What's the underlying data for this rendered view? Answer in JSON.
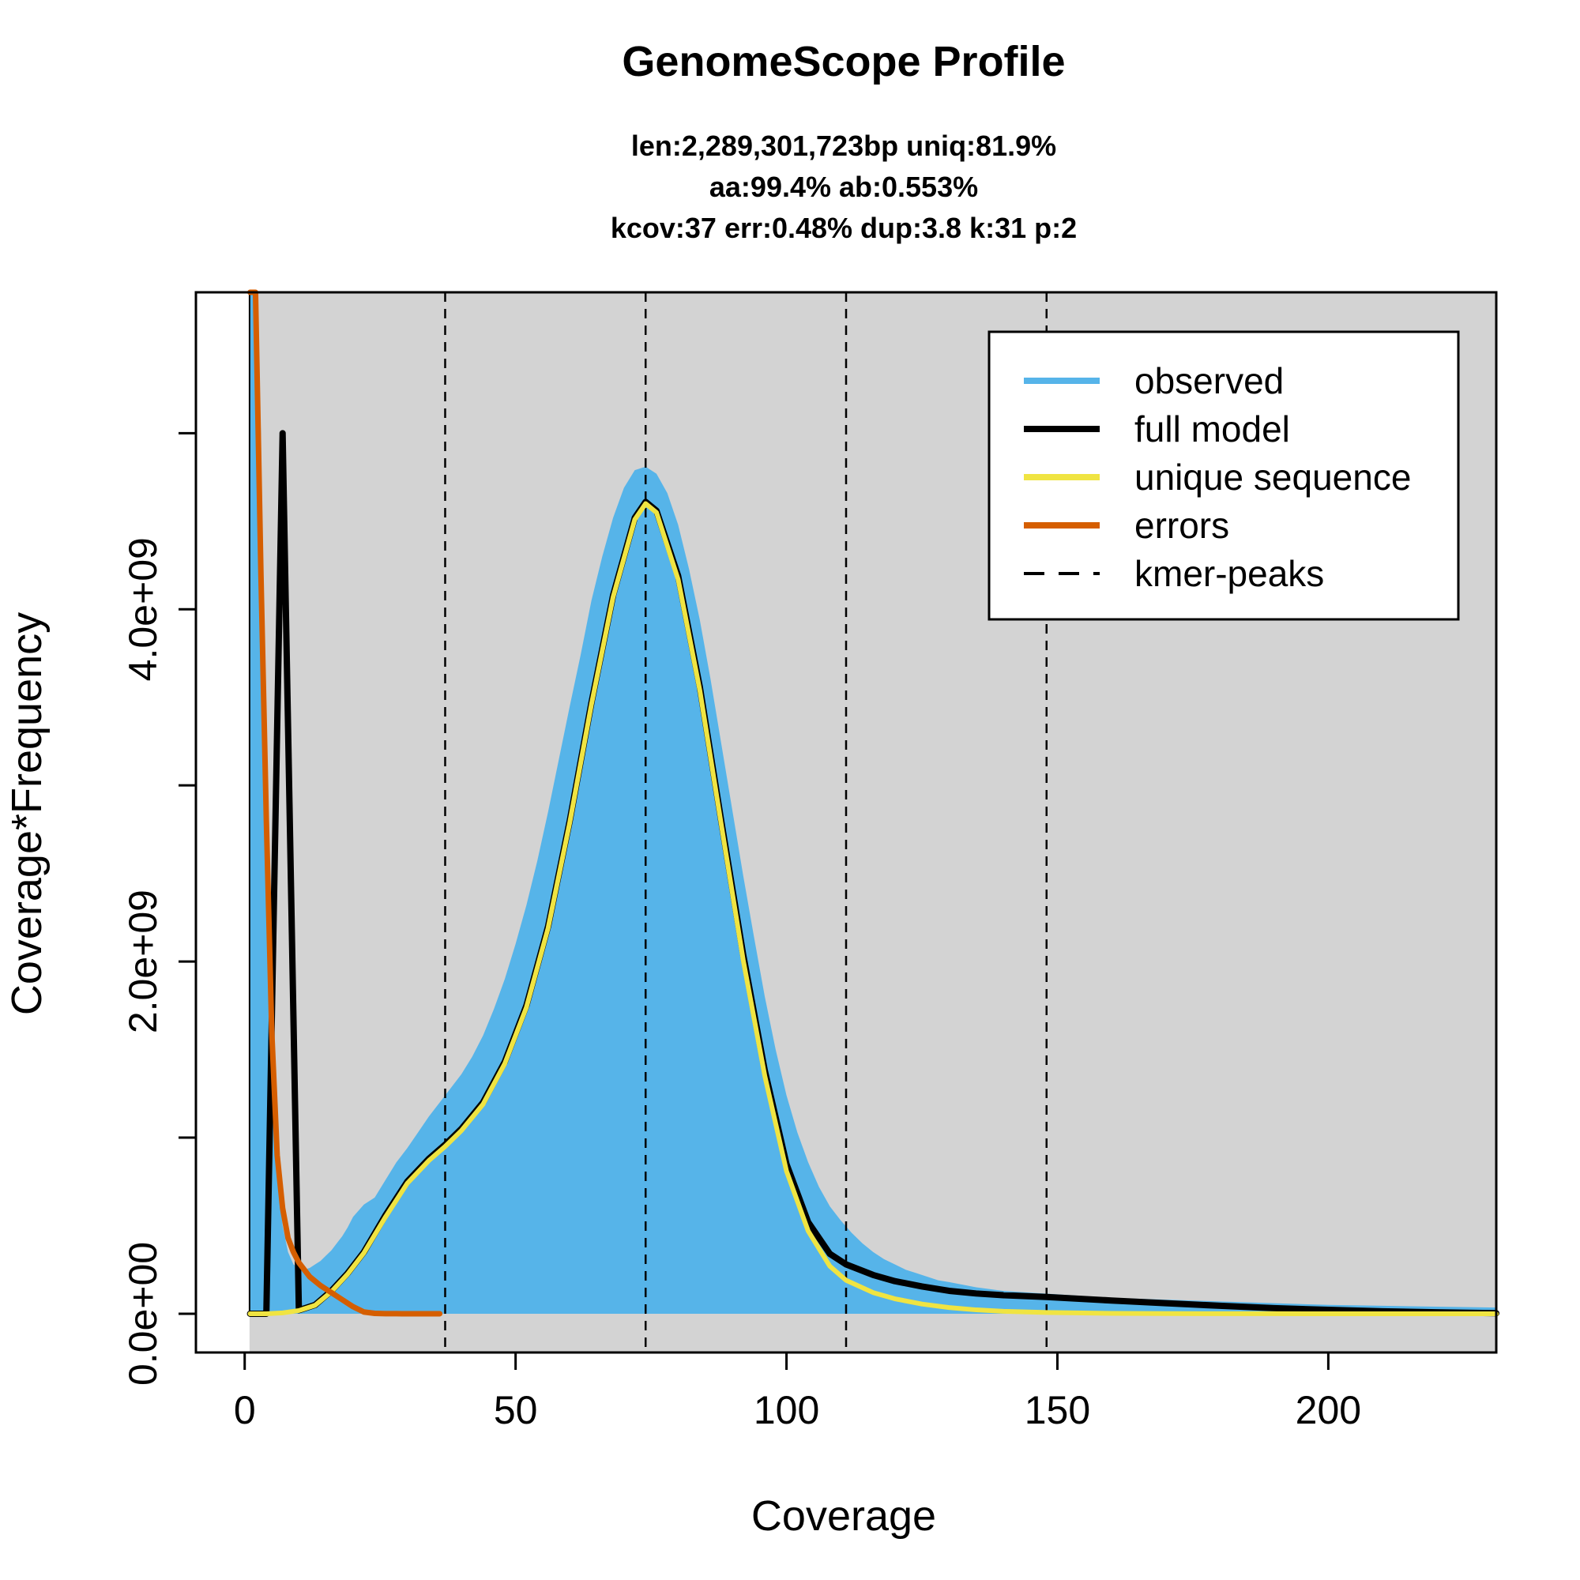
{
  "chart_data": {
    "type": "area",
    "title": "GenomeScope Profile",
    "subtitle_lines": [
      "len:2,289,301,723bp uniq:81.9%",
      "aa:99.4% ab:0.553%",
      "kcov:37 err:0.48%  dup:3.8  k:31 p:2"
    ],
    "xlabel": "Coverage",
    "ylabel": "Coverage*Frequency",
    "xlim": [
      -9,
      231
    ],
    "ylim": [
      -220000000,
      5800000000
    ],
    "x_ticks": [
      {
        "value": 0,
        "label": "0"
      },
      {
        "value": 50,
        "label": "50"
      },
      {
        "value": 100,
        "label": "100"
      },
      {
        "value": 150,
        "label": "150"
      },
      {
        "value": 200,
        "label": "200"
      }
    ],
    "y_ticks": [
      {
        "value": 0,
        "label": "0.0e+00"
      },
      {
        "value": 1000000000,
        "label": "1.0e+09"
      },
      {
        "value": 2000000000,
        "label": "2.0e+09"
      },
      {
        "value": 3000000000,
        "label": "3.0e+09"
      },
      {
        "value": 4000000000,
        "label": "4.0e+09"
      },
      {
        "value": 5000000000,
        "label": "5.0e+09"
      }
    ],
    "kmer_peaks": [
      37,
      74,
      111,
      148
    ],
    "colors": {
      "background": "#d3d3d3",
      "observed": "#56b4e9",
      "full_model": "#000000",
      "unique_sequence": "#f0e442",
      "errors": "#d55e00"
    },
    "legend": {
      "position": "top-right",
      "entries": [
        {
          "label": "observed",
          "color": "#56b4e9",
          "style": "solid"
        },
        {
          "label": "full model",
          "color": "#000000",
          "style": "solid"
        },
        {
          "label": "unique sequence",
          "color": "#f0e442",
          "style": "solid"
        },
        {
          "label": "errors",
          "color": "#d55e00",
          "style": "solid"
        },
        {
          "label": "kmer-peaks",
          "color": "#000000",
          "style": "dashed"
        }
      ]
    },
    "observed": {
      "x": [
        1,
        2,
        3,
        4,
        5,
        6,
        7,
        8,
        9,
        10,
        11,
        12,
        13,
        14,
        15,
        16,
        17,
        18,
        19,
        20,
        22,
        24,
        26,
        28,
        30,
        32,
        34,
        36,
        38,
        40,
        42,
        44,
        46,
        48,
        50,
        52,
        54,
        56,
        58,
        60,
        62,
        64,
        66,
        68,
        70,
        72,
        74,
        76,
        78,
        80,
        82,
        84,
        86,
        88,
        90,
        92,
        94,
        96,
        98,
        100,
        102,
        104,
        106,
        108,
        110,
        112,
        114,
        116,
        118,
        120,
        122,
        124,
        126,
        128,
        130,
        135,
        140,
        145,
        150,
        155,
        160,
        170,
        180,
        190,
        200,
        210,
        220,
        231
      ],
      "y": [
        5800000000,
        5800000000,
        5000000000,
        2400000000,
        1400000000,
        800000000,
        500000000,
        350000000,
        280000000,
        260000000,
        250000000,
        260000000,
        280000000,
        300000000,
        330000000,
        360000000,
        400000000,
        440000000,
        490000000,
        550000000,
        620000000,
        660000000,
        760000000,
        860000000,
        940000000,
        1030000000,
        1120000000,
        1200000000,
        1280000000,
        1360000000,
        1460000000,
        1580000000,
        1730000000,
        1900000000,
        2100000000,
        2320000000,
        2570000000,
        2850000000,
        3150000000,
        3450000000,
        3740000000,
        4050000000,
        4300000000,
        4520000000,
        4690000000,
        4790000000,
        4810000000,
        4770000000,
        4660000000,
        4480000000,
        4230000000,
        3940000000,
        3600000000,
        3230000000,
        2860000000,
        2490000000,
        2140000000,
        1800000000,
        1500000000,
        1240000000,
        1030000000,
        860000000,
        720000000,
        610000000,
        530000000,
        460000000,
        400000000,
        350000000,
        310000000,
        280000000,
        250000000,
        230000000,
        210000000,
        190000000,
        180000000,
        150000000,
        130000000,
        120000000,
        110000000,
        100000000,
        90000000,
        80000000,
        70000000,
        60000000,
        50000000,
        45000000,
        40000000,
        35000000
      ]
    },
    "full_model": {
      "x": [
        1,
        4,
        7,
        10,
        13,
        16,
        19,
        22,
        26,
        30,
        34,
        37,
        40,
        44,
        48,
        52,
        56,
        60,
        64,
        68,
        72,
        74,
        76,
        80,
        84,
        88,
        92,
        96,
        100,
        104,
        108,
        111,
        116,
        120,
        125,
        130,
        135,
        140,
        148,
        160,
        170,
        180,
        190,
        200,
        210,
        220,
        231
      ],
      "y": [
        0,
        0,
        5000000000,
        20000000,
        50000000,
        130000000,
        230000000,
        350000000,
        560000000,
        750000000,
        880000000,
        960000000,
        1050000000,
        1200000000,
        1430000000,
        1750000000,
        2200000000,
        2800000000,
        3470000000,
        4080000000,
        4520000000,
        4610000000,
        4560000000,
        4190000000,
        3560000000,
        2790000000,
        2040000000,
        1380000000,
        850000000,
        520000000,
        340000000,
        280000000,
        220000000,
        185000000,
        155000000,
        130000000,
        115000000,
        105000000,
        95000000,
        75000000,
        60000000,
        45000000,
        32000000,
        22000000,
        14000000,
        8000000,
        3000000
      ]
    },
    "unique_sequence": {
      "x": [
        1,
        4,
        7,
        10,
        13,
        16,
        19,
        22,
        26,
        30,
        34,
        37,
        40,
        44,
        48,
        52,
        56,
        60,
        64,
        68,
        72,
        74,
        76,
        80,
        84,
        88,
        92,
        96,
        100,
        104,
        108,
        111,
        116,
        120,
        125,
        130,
        135,
        140,
        148,
        160,
        170,
        180,
        190,
        200,
        210,
        220,
        231
      ],
      "y": [
        0,
        0,
        5000000,
        18000000,
        48000000,
        125000000,
        225000000,
        345000000,
        550000000,
        740000000,
        870000000,
        950000000,
        1040000000,
        1190000000,
        1420000000,
        1740000000,
        2190000000,
        2790000000,
        3460000000,
        4070000000,
        4510000000,
        4600000000,
        4550000000,
        4170000000,
        3540000000,
        2770000000,
        2010000000,
        1350000000,
        810000000,
        470000000,
        270000000,
        190000000,
        120000000,
        85000000,
        55000000,
        35000000,
        22000000,
        14000000,
        7000000,
        2000000,
        800000,
        300000,
        100000,
        30000,
        10000,
        5000,
        0
      ]
    },
    "errors": {
      "x": [
        1,
        2,
        3,
        4,
        5,
        6,
        7,
        8,
        9,
        10,
        12,
        14,
        16,
        18,
        20,
        22,
        24,
        26,
        28,
        30,
        32,
        34,
        36
      ],
      "y": [
        5800000000,
        5800000000,
        4200000000,
        2800000000,
        1600000000,
        900000000,
        600000000,
        430000000,
        350000000,
        290000000,
        210000000,
        160000000,
        120000000,
        80000000,
        40000000,
        10000000,
        2000000,
        500000,
        100000,
        0,
        0,
        0,
        0
      ]
    }
  }
}
